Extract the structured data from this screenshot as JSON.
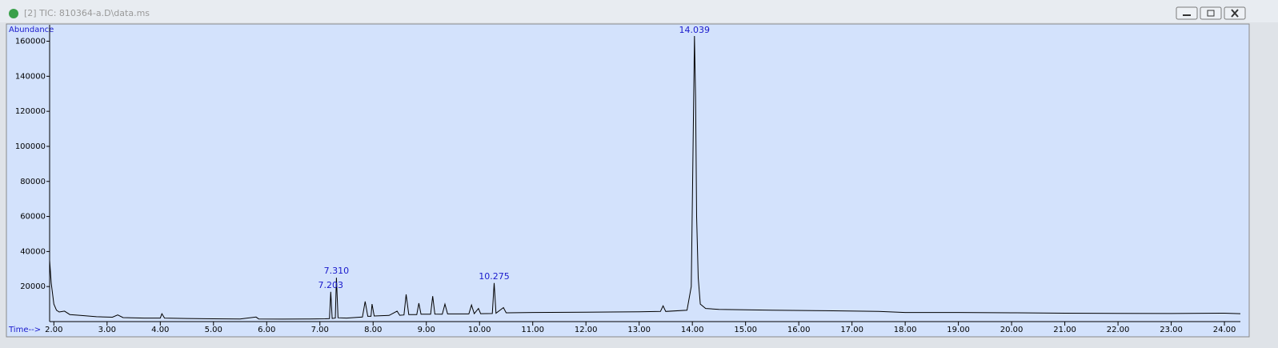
{
  "window": {
    "title": "[2] TIC: 810364-a.D\\data.ms"
  },
  "chart_data": {
    "type": "line",
    "y_label": "Abundance",
    "x_label": "Time-->",
    "color": "#000000",
    "x": [
      1.92,
      1.95,
      2.0,
      2.05,
      2.1,
      2.2,
      2.3,
      2.5,
      2.8,
      3.1,
      3.2,
      3.3,
      3.7,
      4.0,
      4.03,
      4.08,
      4.5,
      5.0,
      5.5,
      5.8,
      5.85,
      6.3,
      6.8,
      7.1,
      7.18,
      7.203,
      7.23,
      7.29,
      7.31,
      7.34,
      7.5,
      7.8,
      7.85,
      7.9,
      7.96,
      7.98,
      8.02,
      8.3,
      8.45,
      8.5,
      8.58,
      8.62,
      8.67,
      8.82,
      8.86,
      8.9,
      9.08,
      9.12,
      9.16,
      9.3,
      9.35,
      9.4,
      9.8,
      9.85,
      9.9,
      9.98,
      10.02,
      10.24,
      10.275,
      10.31,
      10.45,
      10.5,
      11.0,
      12.0,
      13.0,
      13.4,
      13.45,
      13.5,
      13.9,
      13.98,
      14.01,
      14.039,
      14.06,
      14.08,
      14.11,
      14.15,
      14.25,
      14.5,
      15.5,
      16.5,
      17.5,
      18.0,
      19.0,
      20.0,
      21.0,
      22.0,
      23.0,
      24.0,
      24.3
    ],
    "values": [
      35000,
      22000,
      10000,
      6500,
      5500,
      6000,
      4000,
      3500,
      2800,
      2500,
      3800,
      2300,
      2000,
      2000,
      4500,
      2000,
      1800,
      1600,
      1500,
      2600,
      1500,
      1400,
      1500,
      1600,
      1700,
      17000,
      1800,
      2000,
      25000,
      2200,
      2000,
      2600,
      11500,
      3000,
      3000,
      10000,
      3200,
      3500,
      6000,
      3600,
      3800,
      15500,
      4000,
      4000,
      10500,
      4200,
      4200,
      14500,
      4300,
      4200,
      10000,
      4400,
      4400,
      9500,
      4500,
      7500,
      4500,
      4600,
      22000,
      4800,
      8000,
      5000,
      5200,
      5400,
      5600,
      5800,
      9000,
      5800,
      6500,
      20000,
      90000,
      163000,
      128000,
      60000,
      25000,
      10000,
      7500,
      7000,
      6500,
      6200,
      5800,
      5200,
      5200,
      5000,
      4800,
      4700,
      4600,
      4800,
      4500
    ],
    "annotations": [
      {
        "x": 7.203,
        "label": "7.203"
      },
      {
        "x": 7.31,
        "label": "7.310"
      },
      {
        "x": 10.275,
        "label": "10.275"
      },
      {
        "x": 14.039,
        "label": "14.039"
      }
    ],
    "xlim": [
      1.92,
      24.3
    ],
    "ylim": [
      0,
      168000
    ],
    "xticks": [
      {
        "value": 2,
        "label": "2.00"
      },
      {
        "value": 3,
        "label": "3.00"
      },
      {
        "value": 4,
        "label": "4.00"
      },
      {
        "value": 5,
        "label": "5.00"
      },
      {
        "value": 6,
        "label": "6.00"
      },
      {
        "value": 7,
        "label": "7.00"
      },
      {
        "value": 8,
        "label": "8.00"
      },
      {
        "value": 9,
        "label": "9.00"
      },
      {
        "value": 10,
        "label": "10.00"
      },
      {
        "value": 11,
        "label": "11.00"
      },
      {
        "value": 12,
        "label": "12.00"
      },
      {
        "value": 13,
        "label": "13.00"
      },
      {
        "value": 14,
        "label": "14.00"
      },
      {
        "value": 15,
        "label": "15.00"
      },
      {
        "value": 16,
        "label": "16.00"
      },
      {
        "value": 17,
        "label": "17.00"
      },
      {
        "value": 18,
        "label": "18.00"
      },
      {
        "value": 19,
        "label": "19.00"
      },
      {
        "value": 20,
        "label": "20.00"
      },
      {
        "value": 21,
        "label": "21.00"
      },
      {
        "value": 22,
        "label": "22.00"
      },
      {
        "value": 23,
        "label": "23.00"
      },
      {
        "value": 24,
        "label": "24.00"
      }
    ],
    "yticks": [
      20000,
      40000,
      60000,
      80000,
      100000,
      120000,
      140000,
      160000
    ]
  }
}
